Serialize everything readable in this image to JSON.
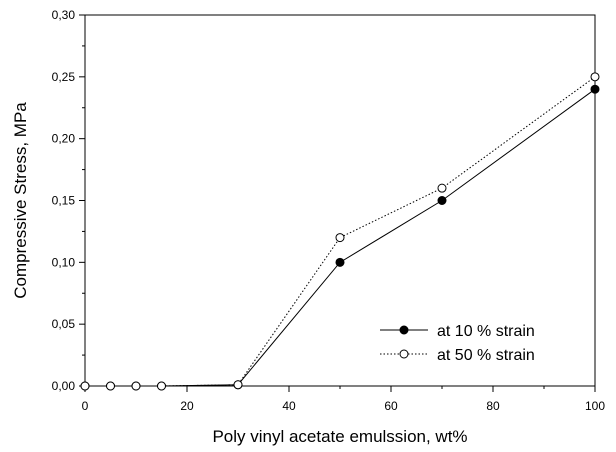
{
  "chart_data": {
    "type": "line",
    "xlabel": "Poly vinyl acetate emulssion, wt%",
    "ylabel": "Compressive Stress, MPa",
    "xlim": [
      0,
      100
    ],
    "ylim": [
      0,
      0.3
    ],
    "x_ticks": [
      "0",
      "20",
      "40",
      "60",
      "80",
      "100"
    ],
    "y_ticks": [
      "0,00",
      "0,05",
      "0,10",
      "0,15",
      "0,20",
      "0,25",
      "0,30"
    ],
    "grid": false,
    "legend_position": "bottom-right",
    "series": [
      {
        "name": "at 10 % strain",
        "marker": "filled-circle",
        "line_style": "solid",
        "color": "#000000",
        "x": [
          0,
          5,
          10,
          15,
          30,
          50,
          70,
          100
        ],
        "y": [
          0.0,
          0.0,
          0.0,
          0.0,
          0.001,
          0.1,
          0.15,
          0.24
        ]
      },
      {
        "name": "at 50 % strain",
        "marker": "open-circle",
        "line_style": "dotted",
        "color": "#000000",
        "x": [
          0,
          5,
          10,
          15,
          30,
          50,
          70,
          100
        ],
        "y": [
          0.0,
          0.0,
          0.0,
          0.0,
          0.001,
          0.12,
          0.16,
          0.25
        ]
      }
    ]
  }
}
